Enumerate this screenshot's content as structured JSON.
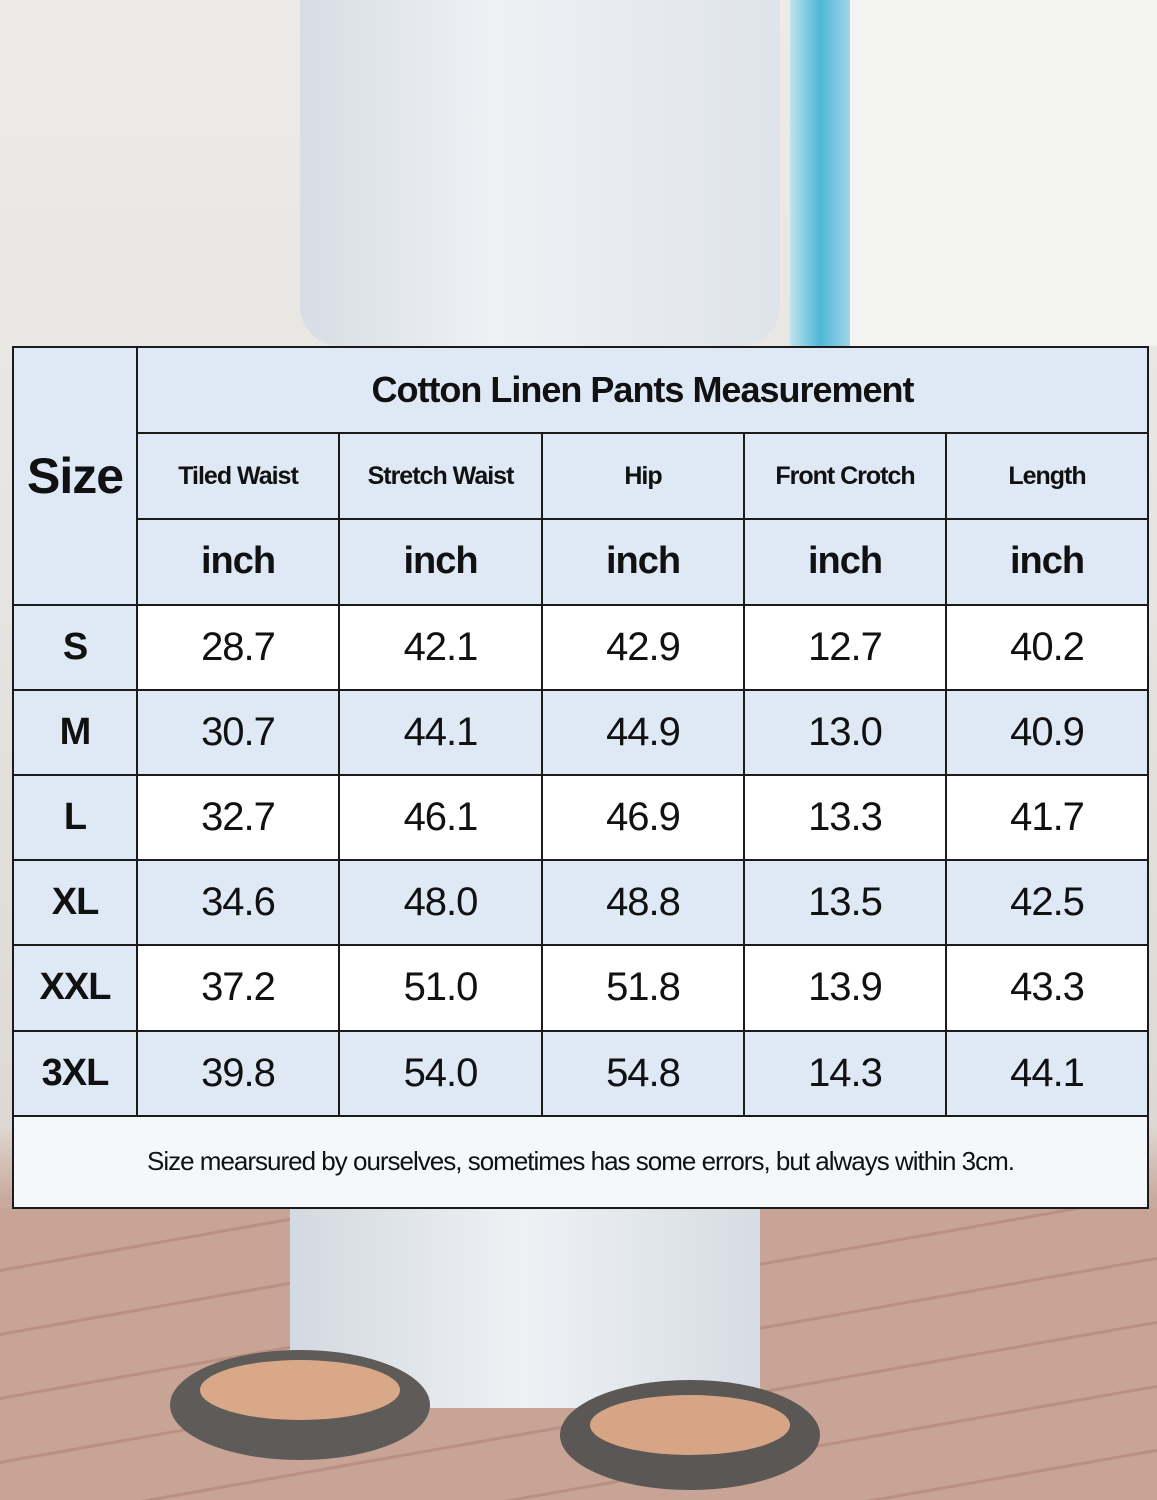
{
  "size_chart": {
    "title": "Cotton Linen Pants Measurement",
    "size_header": "Size",
    "columns": [
      "Tiled Waist",
      "Stretch Waist",
      "Hip",
      "Front Crotch",
      "Length"
    ],
    "units": [
      "inch",
      "inch",
      "inch",
      "inch",
      "inch"
    ],
    "rows": [
      {
        "size": "S",
        "values": [
          "28.7",
          "42.1",
          "42.9",
          "12.7",
          "40.2"
        ]
      },
      {
        "size": "M",
        "values": [
          "30.7",
          "44.1",
          "44.9",
          "13.0",
          "40.9"
        ]
      },
      {
        "size": "L",
        "values": [
          "32.7",
          "46.1",
          "46.9",
          "13.3",
          "41.7"
        ]
      },
      {
        "size": "XL",
        "values": [
          "34.6",
          "48.0",
          "48.8",
          "13.5",
          "42.5"
        ]
      },
      {
        "size": "XXL",
        "values": [
          "37.2",
          "51.0",
          "51.8",
          "13.9",
          "43.3"
        ]
      },
      {
        "size": "3XL",
        "values": [
          "39.8",
          "54.0",
          "54.8",
          "14.3",
          "44.1"
        ]
      }
    ],
    "footnote": "Size mearsured by ourselves, sometimes has some errors, but always within 3cm."
  },
  "colors": {
    "header_fill": "#dfe9f6",
    "alt_row_fill": "#ffffff",
    "border": "#1b1b1b"
  }
}
